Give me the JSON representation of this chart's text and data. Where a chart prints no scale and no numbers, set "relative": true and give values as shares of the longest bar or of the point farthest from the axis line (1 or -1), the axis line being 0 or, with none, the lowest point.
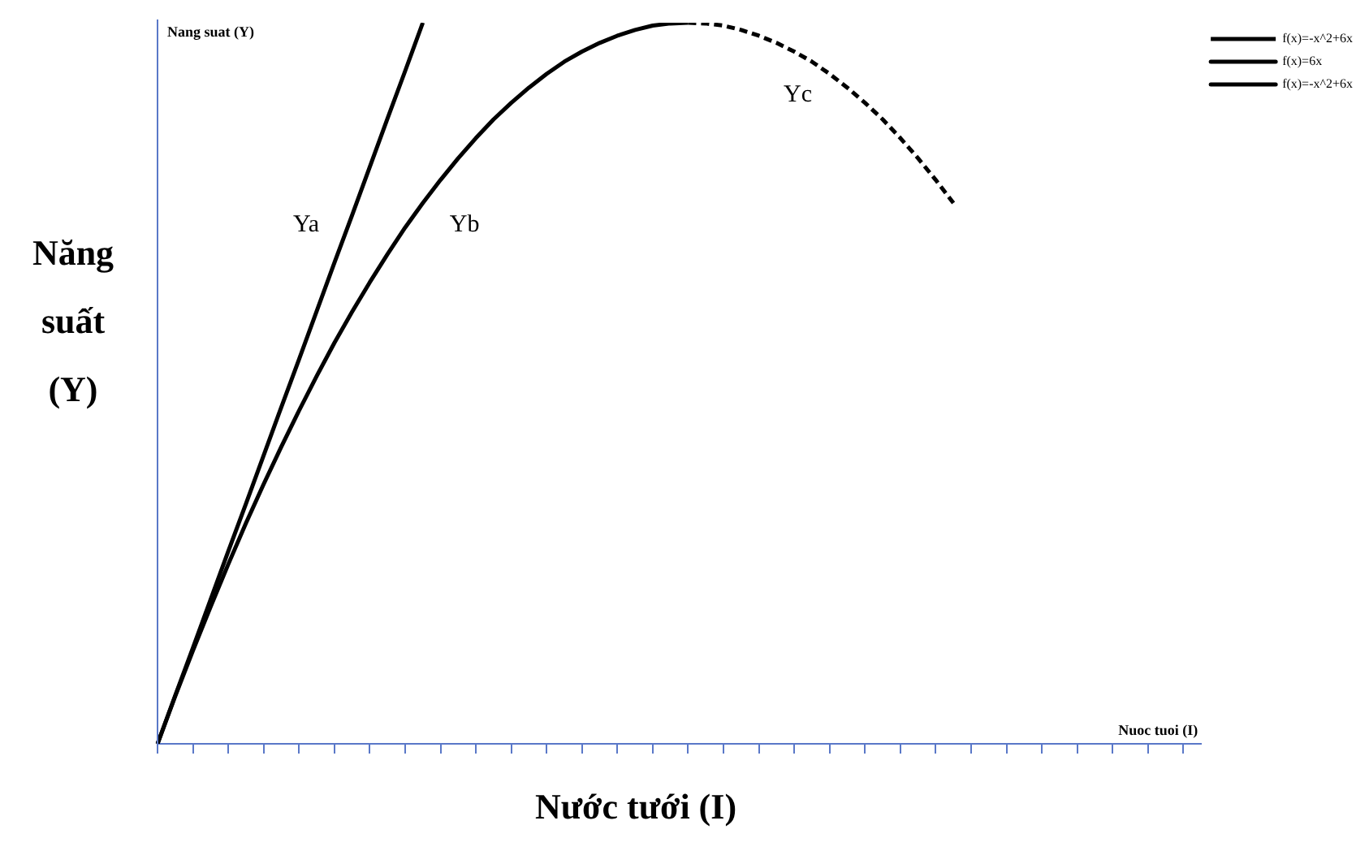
{
  "chart_data": {
    "type": "line",
    "relative": true,
    "xlabel": "Nước tưới (I)",
    "ylabel": "Năng suất (Y)",
    "annotations": [
      "Nang suat (Y)",
      "Nuoc tuoi (I)",
      "Ya",
      "Yb",
      "Yc"
    ],
    "categories": [
      null,
      null,
      null,
      null,
      null,
      null,
      null,
      null,
      null,
      null,
      null,
      null,
      null,
      null,
      null,
      null,
      null,
      null,
      null,
      null,
      null,
      null,
      null,
      null,
      null,
      null,
      null,
      null,
      null,
      null,
      null,
      null,
      null,
      null,
      null,
      null,
      null,
      null,
      null,
      null,
      null,
      null,
      null,
      null,
      null,
      null,
      null,
      null,
      null,
      null,
      null,
      null,
      null,
      null,
      null,
      null,
      null,
      null,
      null,
      null
    ],
    "series": [
      {
        "name": "f(x)=-x^2+6x",
        "color": "#000000",
        "line_style": "dashed",
        "values": [
          null,
          null,
          null,
          null,
          null,
          null,
          null,
          null,
          null,
          null,
          null,
          null,
          null,
          null,
          null,
          null,
          null,
          null,
          null,
          null,
          null,
          null,
          null,
          null,
          null,
          null,
          null,
          null,
          null,
          null,
          1,
          0.999,
          0.996,
          0.99,
          0.982,
          0.972,
          0.96,
          0.946,
          0.929,
          0.91,
          0.889,
          0.866,
          0.84,
          0.812,
          0.782,
          0.75,
          null,
          null,
          null,
          null,
          null,
          null,
          null,
          null,
          null,
          null,
          null,
          null,
          null,
          null
        ]
      },
      {
        "name": "f(x)=6x",
        "color": "#000000",
        "line_style": "solid",
        "values": [
          0,
          0.067,
          0.133,
          0.2,
          0.267,
          0.333,
          0.4,
          0.467,
          0.533,
          0.6,
          0.667,
          0.733,
          0.8,
          0.867,
          0.933,
          1,
          null,
          null,
          null,
          null,
          null,
          null,
          null,
          null,
          null,
          null,
          null,
          null,
          null,
          null,
          null,
          null,
          null,
          null,
          null,
          null,
          null,
          null,
          null,
          null,
          null,
          null,
          null,
          null,
          null,
          null,
          null,
          null,
          null,
          null,
          null,
          null,
          null,
          null,
          null,
          null,
          null,
          null,
          null,
          null
        ]
      },
      {
        "name": "f(x)=-x^2+6x",
        "color": "#000000",
        "line_style": "solid",
        "values": [
          0,
          0.066,
          0.129,
          0.19,
          0.249,
          0.306,
          0.36,
          0.412,
          0.462,
          0.51,
          0.556,
          0.599,
          0.64,
          0.679,
          0.716,
          0.75,
          0.782,
          0.812,
          0.84,
          0.866,
          0.889,
          0.91,
          0.929,
          0.946,
          0.96,
          0.972,
          0.982,
          0.99,
          0.996,
          0.999,
          1,
          null,
          null,
          null,
          null,
          null,
          null,
          null,
          null,
          null,
          null,
          null,
          null,
          null,
          null,
          null,
          null,
          null,
          null,
          null,
          null,
          null,
          null,
          null,
          null,
          null,
          null,
          null,
          null,
          null
        ]
      }
    ],
    "legend": "top right",
    "grid": false,
    "tick_labels": false,
    "marker": "none"
  }
}
